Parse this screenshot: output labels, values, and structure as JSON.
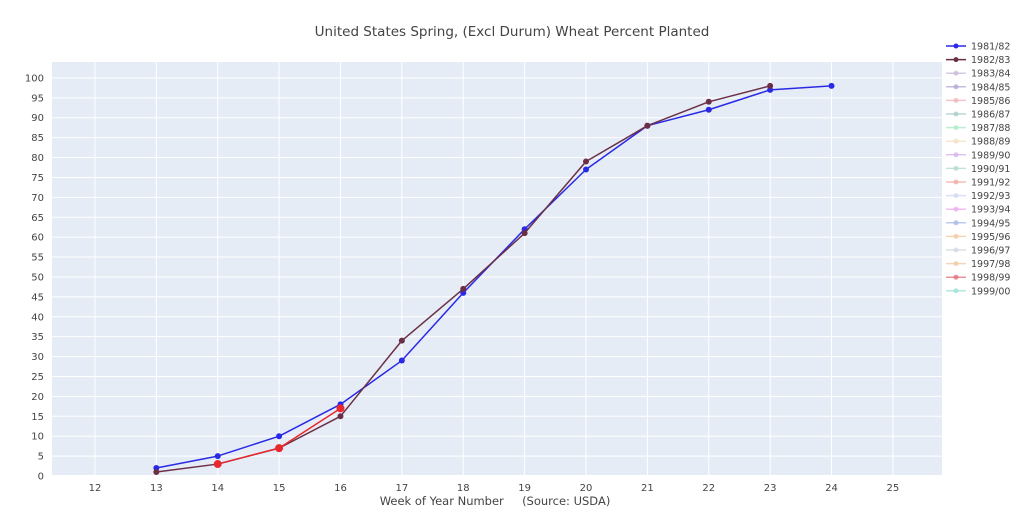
{
  "chart_data": {
    "type": "line",
    "title": "United States Spring, (Excl Durum) Wheat Percent Planted",
    "xlabel": "Week of Year Number     (Source: USDA)",
    "ylabel": "",
    "xlim": [
      11.3,
      25.8
    ],
    "ylim": [
      0,
      104
    ],
    "x_ticks": [
      12,
      13,
      14,
      15,
      16,
      17,
      18,
      19,
      20,
      21,
      22,
      23,
      24,
      25
    ],
    "y_ticks": [
      0,
      5,
      10,
      15,
      20,
      25,
      30,
      35,
      40,
      45,
      50,
      55,
      60,
      65,
      70,
      75,
      80,
      85,
      90,
      95,
      100
    ],
    "grid": true,
    "legend_position": "right",
    "series": [
      {
        "name": "1981/82",
        "color": "#2a2ae6",
        "x": [
          13,
          14,
          15,
          16,
          17,
          18,
          19,
          20,
          21,
          22,
          23,
          24
        ],
        "y": [
          2,
          5,
          10,
          18,
          29,
          46,
          62,
          77,
          88,
          92,
          97,
          98
        ],
        "width": 1.5,
        "marker": 3
      },
      {
        "name": "1982/83",
        "color": "#6b2f45",
        "x": [
          13,
          14,
          15,
          16,
          17,
          18,
          19,
          20,
          21,
          22,
          23
        ],
        "y": [
          1,
          3,
          7,
          15,
          34,
          47,
          61,
          79,
          88,
          94,
          98
        ],
        "width": 1.5,
        "marker": 3
      },
      {
        "name": "1983/84",
        "color": "#c9b8d6",
        "x": [],
        "y": []
      },
      {
        "name": "1984/85",
        "color": "#b3a6d6",
        "x": [],
        "y": []
      },
      {
        "name": "1985/86",
        "color": "#f2b3b8",
        "x": [],
        "y": []
      },
      {
        "name": "1986/87",
        "color": "#a6ccc8",
        "x": [],
        "y": []
      },
      {
        "name": "1987/88",
        "color": "#a8ecc4",
        "x": [],
        "y": []
      },
      {
        "name": "1988/89",
        "color": "#f6ddc3",
        "x": [],
        "y": []
      },
      {
        "name": "1989/90",
        "color": "#d6b2ef",
        "x": [],
        "y": []
      },
      {
        "name": "1990/91",
        "color": "#b2d9cc",
        "x": [],
        "y": []
      },
      {
        "name": "1991/92",
        "color": "#f2a8a2",
        "x": [],
        "y": []
      },
      {
        "name": "1992/93",
        "color": "#cfd8ee",
        "x": [],
        "y": []
      },
      {
        "name": "1993/94",
        "color": "#f0a8f0",
        "x": [],
        "y": []
      },
      {
        "name": "1994/95",
        "color": "#a7b9e6",
        "x": [],
        "y": []
      },
      {
        "name": "1995/96",
        "color": "#f3c8a0",
        "x": [],
        "y": []
      },
      {
        "name": "1996/97",
        "color": "#d0d8e4",
        "x": [],
        "y": []
      },
      {
        "name": "1997/98",
        "color": "#f0c8a0",
        "x": [],
        "y": []
      },
      {
        "name": "1998/99",
        "color": "#e36d7b",
        "x": [],
        "y": []
      },
      {
        "name": "1999/00",
        "color": "#9ee0d6",
        "x": [],
        "y": []
      },
      {
        "name": "",
        "color": "#e8282c",
        "x": [
          14,
          15,
          16
        ],
        "y": [
          3,
          7,
          17
        ],
        "width": 1.5,
        "marker": 4,
        "legend": false
      }
    ]
  }
}
